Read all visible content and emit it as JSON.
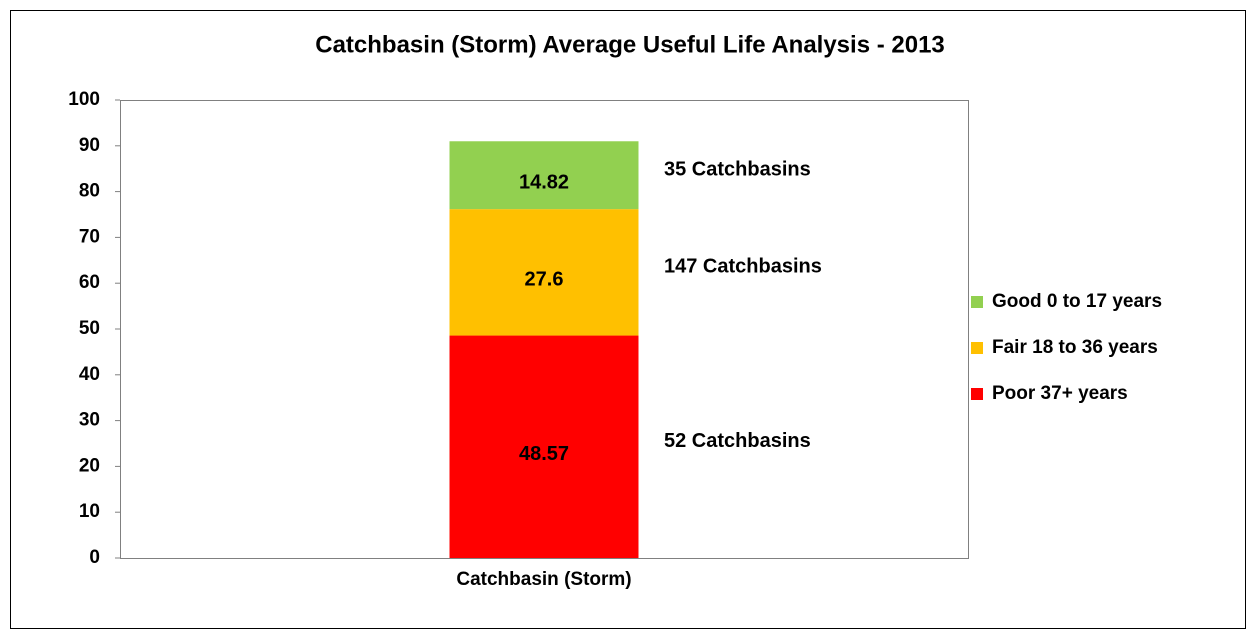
{
  "chart_data": {
    "type": "stacked_bar",
    "title": "Catchbasin (Storm) Average Useful Life Analysis - 2013",
    "categories": [
      "Catchbasin (Storm)"
    ],
    "series": [
      {
        "name": "Poor 37+ years",
        "color": "#ff0000",
        "values": [
          48.57
        ]
      },
      {
        "name": "Fair 18  to 36 years",
        "color": "#ffc000",
        "values": [
          27.6
        ]
      },
      {
        "name": "Good 0 to 17 years",
        "color": "#92d050",
        "values": [
          14.82
        ]
      }
    ],
    "annotations": [
      "52 Catchbasins",
      "147 Catchbasins",
      "35 Catchbasins"
    ],
    "ylim": [
      0,
      100
    ],
    "yticks": [
      0,
      10,
      20,
      30,
      40,
      50,
      60,
      70,
      80,
      90,
      100
    ],
    "legend": "right"
  }
}
